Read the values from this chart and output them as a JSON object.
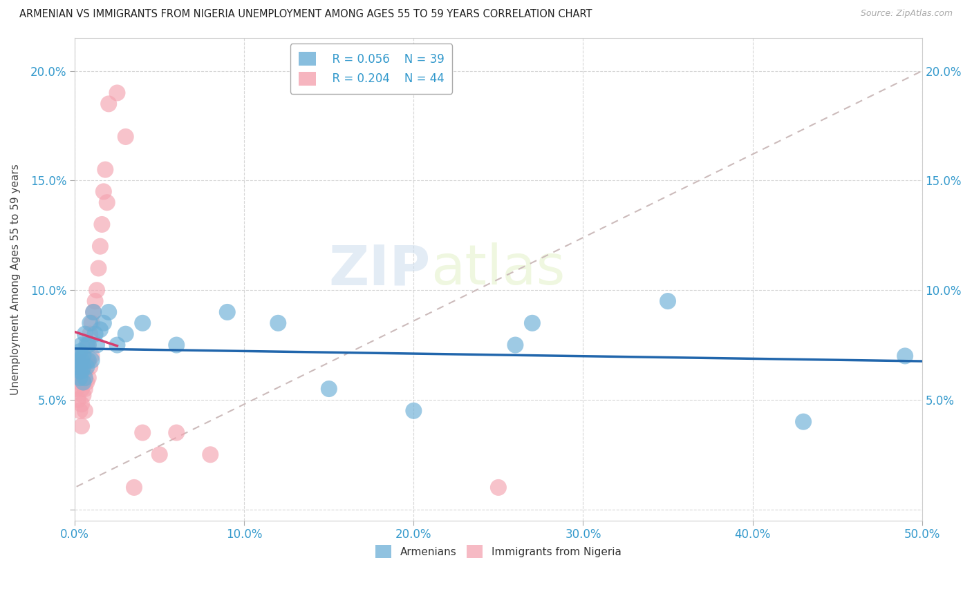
{
  "title": "ARMENIAN VS IMMIGRANTS FROM NIGERIA UNEMPLOYMENT AMONG AGES 55 TO 59 YEARS CORRELATION CHART",
  "source": "Source: ZipAtlas.com",
  "ylabel": "Unemployment Among Ages 55 to 59 years",
  "xlabel_ticks": [
    "0.0%",
    "10.0%",
    "20.0%",
    "30.0%",
    "40.0%",
    "50.0%"
  ],
  "ylabel_ticks_left": [
    "",
    "5.0%",
    "10.0%",
    "15.0%",
    "20.0%"
  ],
  "ylabel_ticks_right": [
    "",
    "5.0%",
    "10.0%",
    "15.0%",
    "20.0%"
  ],
  "xlim": [
    0,
    0.5
  ],
  "ylim": [
    -0.005,
    0.215
  ],
  "legend_armenian_R": "R = 0.056",
  "legend_armenian_N": "N = 39",
  "legend_nigeria_R": "R = 0.204",
  "legend_nigeria_N": "N = 44",
  "armenian_color": "#6baed6",
  "nigeria_color": "#f4a3b0",
  "trendline_armenian_color": "#2166ac",
  "trendline_nigeria_color": "#d63e6e",
  "trendline_ref_color": "#ccbbbb",
  "background_color": "#ffffff",
  "watermark_zip": "ZIP",
  "watermark_atlas": "atlas",
  "armenian_x": [
    0.001,
    0.002,
    0.002,
    0.003,
    0.003,
    0.003,
    0.004,
    0.004,
    0.004,
    0.005,
    0.005,
    0.005,
    0.006,
    0.006,
    0.007,
    0.007,
    0.008,
    0.008,
    0.009,
    0.01,
    0.011,
    0.012,
    0.013,
    0.015,
    0.017,
    0.02,
    0.025,
    0.03,
    0.04,
    0.06,
    0.09,
    0.12,
    0.15,
    0.2,
    0.27,
    0.35,
    0.43,
    0.49,
    0.26
  ],
  "armenian_y": [
    0.07,
    0.065,
    0.068,
    0.063,
    0.072,
    0.06,
    0.068,
    0.075,
    0.063,
    0.058,
    0.07,
    0.065,
    0.08,
    0.06,
    0.075,
    0.065,
    0.068,
    0.075,
    0.085,
    0.068,
    0.09,
    0.08,
    0.075,
    0.082,
    0.085,
    0.09,
    0.075,
    0.08,
    0.085,
    0.075,
    0.09,
    0.085,
    0.055,
    0.045,
    0.085,
    0.095,
    0.04,
    0.07,
    0.075
  ],
  "nigeria_x": [
    0.001,
    0.001,
    0.001,
    0.002,
    0.002,
    0.002,
    0.003,
    0.003,
    0.003,
    0.004,
    0.004,
    0.004,
    0.004,
    0.005,
    0.005,
    0.006,
    0.006,
    0.006,
    0.007,
    0.007,
    0.008,
    0.008,
    0.009,
    0.009,
    0.01,
    0.01,
    0.011,
    0.012,
    0.013,
    0.014,
    0.015,
    0.016,
    0.017,
    0.018,
    0.019,
    0.02,
    0.025,
    0.03,
    0.035,
    0.04,
    0.05,
    0.06,
    0.08,
    0.25
  ],
  "nigeria_y": [
    0.065,
    0.06,
    0.055,
    0.068,
    0.07,
    0.05,
    0.062,
    0.058,
    0.045,
    0.065,
    0.055,
    0.048,
    0.038,
    0.06,
    0.052,
    0.063,
    0.055,
    0.045,
    0.068,
    0.058,
    0.075,
    0.06,
    0.08,
    0.065,
    0.085,
    0.07,
    0.09,
    0.095,
    0.1,
    0.11,
    0.12,
    0.13,
    0.145,
    0.155,
    0.14,
    0.185,
    0.19,
    0.17,
    0.01,
    0.035,
    0.025,
    0.035,
    0.025,
    0.01
  ]
}
